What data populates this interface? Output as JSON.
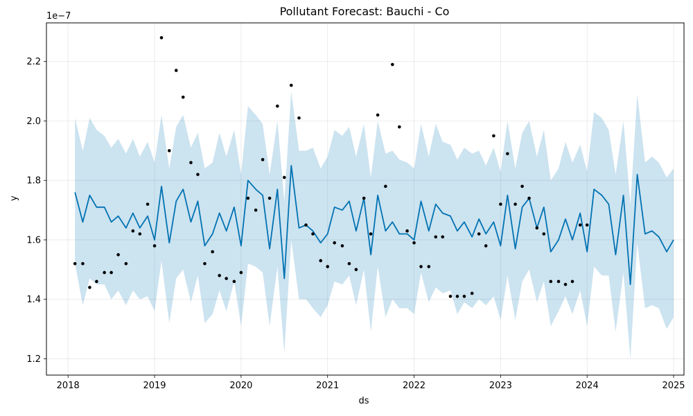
{
  "chart_data": {
    "type": "line",
    "title": "Pollutant Forecast: Bauchi - Co",
    "xlabel": "ds",
    "ylabel": "y",
    "y_offset_label": "1e−7",
    "xlim": [
      2017.75,
      2025.12
    ],
    "ylim": [
      1.145,
      2.33
    ],
    "x_ticks": [
      2018,
      2019,
      2020,
      2021,
      2022,
      2023,
      2024,
      2025
    ],
    "x_tick_labels": [
      "2018",
      "2019",
      "2020",
      "2021",
      "2022",
      "2023",
      "2024",
      "2025"
    ],
    "y_ticks": [
      1.2,
      1.4,
      1.6,
      1.8,
      2.0,
      2.2
    ],
    "y_tick_labels": [
      "1.2",
      "1.4",
      "1.6",
      "1.8",
      "2.0",
      "2.2"
    ],
    "grid": true,
    "colors": {
      "forecast": "#0072B2",
      "interval": "#0072B2",
      "observed": "#000000"
    },
    "series": [
      {
        "kind": "interval",
        "x": [
          2018.08,
          2018.17,
          2018.25,
          2018.33,
          2018.42,
          2018.5,
          2018.58,
          2018.67,
          2018.75,
          2018.83,
          2018.92,
          2019.0,
          2019.08,
          2019.17,
          2019.25,
          2019.33,
          2019.42,
          2019.5,
          2019.58,
          2019.67,
          2019.75,
          2019.83,
          2019.92,
          2020.0,
          2020.08,
          2020.17,
          2020.25,
          2020.33,
          2020.42,
          2020.5,
          2020.58,
          2020.67,
          2020.75,
          2020.83,
          2020.92,
          2021.0,
          2021.08,
          2021.17,
          2021.25,
          2021.33,
          2021.42,
          2021.5,
          2021.58,
          2021.67,
          2021.75,
          2021.83,
          2021.92,
          2022.0,
          2022.08,
          2022.17,
          2022.25,
          2022.33,
          2022.42,
          2022.5,
          2022.58,
          2022.67,
          2022.75,
          2022.83,
          2022.92,
          2023.0,
          2023.08,
          2023.17,
          2023.25,
          2023.33,
          2023.42,
          2023.5,
          2023.58,
          2023.67,
          2023.75,
          2023.83,
          2023.92,
          2024.0,
          2024.08,
          2024.17,
          2024.25,
          2024.33,
          2024.42,
          2024.5,
          2024.58,
          2024.67,
          2024.75,
          2024.83,
          2024.92,
          2025.0
        ],
        "lower": [
          1.52,
          1.38,
          1.47,
          1.45,
          1.45,
          1.4,
          1.43,
          1.38,
          1.43,
          1.4,
          1.41,
          1.36,
          1.53,
          1.32,
          1.47,
          1.5,
          1.39,
          1.48,
          1.32,
          1.35,
          1.43,
          1.36,
          1.46,
          1.31,
          1.52,
          1.51,
          1.49,
          1.31,
          1.51,
          1.22,
          1.6,
          1.4,
          1.4,
          1.37,
          1.34,
          1.38,
          1.46,
          1.45,
          1.48,
          1.38,
          1.5,
          1.29,
          1.51,
          1.34,
          1.4,
          1.37,
          1.37,
          1.35,
          1.49,
          1.39,
          1.44,
          1.42,
          1.43,
          1.35,
          1.39,
          1.37,
          1.4,
          1.38,
          1.41,
          1.33,
          1.48,
          1.33,
          1.46,
          1.5,
          1.39,
          1.46,
          1.31,
          1.36,
          1.41,
          1.35,
          1.43,
          1.31,
          1.51,
          1.48,
          1.48,
          1.29,
          1.49,
          1.2,
          1.59,
          1.37,
          1.38,
          1.37,
          1.3,
          1.34
        ],
        "upper": [
          2.01,
          1.9,
          2.01,
          1.97,
          1.95,
          1.91,
          1.94,
          1.89,
          1.94,
          1.88,
          1.93,
          1.86,
          2.02,
          1.84,
          1.98,
          2.02,
          1.91,
          1.96,
          1.84,
          1.86,
          1.96,
          1.88,
          1.97,
          1.82,
          2.05,
          2.02,
          1.99,
          1.82,
          2.0,
          1.73,
          2.1,
          1.9,
          1.9,
          1.91,
          1.84,
          1.88,
          1.97,
          1.95,
          1.98,
          1.88,
          1.99,
          1.81,
          2.0,
          1.89,
          1.9,
          1.87,
          1.86,
          1.84,
          1.99,
          1.88,
          1.99,
          1.93,
          1.92,
          1.87,
          1.91,
          1.89,
          1.9,
          1.85,
          1.91,
          1.83,
          2.0,
          1.84,
          1.96,
          2.0,
          1.88,
          1.97,
          1.8,
          1.84,
          1.93,
          1.86,
          1.92,
          1.83,
          2.03,
          2.01,
          1.97,
          1.82,
          2.0,
          1.72,
          2.09,
          1.86,
          1.88,
          1.86,
          1.81,
          1.84
        ]
      },
      {
        "kind": "line",
        "x": [
          2018.08,
          2018.17,
          2018.25,
          2018.33,
          2018.42,
          2018.5,
          2018.58,
          2018.67,
          2018.75,
          2018.83,
          2018.92,
          2019.0,
          2019.08,
          2019.17,
          2019.25,
          2019.33,
          2019.42,
          2019.5,
          2019.58,
          2019.67,
          2019.75,
          2019.83,
          2019.92,
          2020.0,
          2020.08,
          2020.17,
          2020.25,
          2020.33,
          2020.42,
          2020.5,
          2020.58,
          2020.67,
          2020.75,
          2020.83,
          2020.92,
          2021.0,
          2021.08,
          2021.17,
          2021.25,
          2021.33,
          2021.42,
          2021.5,
          2021.58,
          2021.67,
          2021.75,
          2021.83,
          2021.92,
          2022.0,
          2022.08,
          2022.17,
          2022.25,
          2022.33,
          2022.42,
          2022.5,
          2022.58,
          2022.67,
          2022.75,
          2022.83,
          2022.92,
          2023.0,
          2023.08,
          2023.17,
          2023.25,
          2023.33,
          2023.42,
          2023.5,
          2023.58,
          2023.67,
          2023.75,
          2023.83,
          2023.92,
          2024.0,
          2024.08,
          2024.17,
          2024.25,
          2024.33,
          2024.42,
          2024.5,
          2024.58,
          2024.67,
          2024.75,
          2024.83,
          2024.92,
          2025.0
        ],
        "values": [
          1.76,
          1.66,
          1.75,
          1.71,
          1.71,
          1.66,
          1.68,
          1.64,
          1.69,
          1.64,
          1.68,
          1.6,
          1.78,
          1.59,
          1.73,
          1.77,
          1.66,
          1.73,
          1.58,
          1.62,
          1.69,
          1.63,
          1.71,
          1.58,
          1.8,
          1.77,
          1.75,
          1.57,
          1.77,
          1.47,
          1.85,
          1.64,
          1.65,
          1.63,
          1.59,
          1.62,
          1.71,
          1.7,
          1.73,
          1.63,
          1.74,
          1.55,
          1.75,
          1.63,
          1.66,
          1.62,
          1.62,
          1.6,
          1.73,
          1.63,
          1.72,
          1.69,
          1.68,
          1.63,
          1.66,
          1.61,
          1.67,
          1.62,
          1.66,
          1.58,
          1.75,
          1.57,
          1.71,
          1.74,
          1.64,
          1.71,
          1.56,
          1.6,
          1.67,
          1.6,
          1.69,
          1.56,
          1.77,
          1.75,
          1.72,
          1.55,
          1.75,
          1.45,
          1.82,
          1.62,
          1.63,
          1.61,
          1.56,
          1.6
        ]
      },
      {
        "kind": "points",
        "x": [
          2018.08,
          2018.17,
          2018.25,
          2018.33,
          2018.42,
          2018.5,
          2018.58,
          2018.67,
          2018.75,
          2018.83,
          2018.92,
          2019.0,
          2019.08,
          2019.17,
          2019.25,
          2019.33,
          2019.42,
          2019.5,
          2019.58,
          2019.67,
          2019.75,
          2019.83,
          2019.92,
          2020.0,
          2020.08,
          2020.17,
          2020.25,
          2020.33,
          2020.42,
          2020.5,
          2020.58,
          2020.67,
          2020.75,
          2020.83,
          2020.92,
          2021.0,
          2021.08,
          2021.17,
          2021.25,
          2021.33,
          2021.42,
          2021.5,
          2021.58,
          2021.67,
          2021.75,
          2021.83,
          2021.92,
          2022.0,
          2022.08,
          2022.17,
          2022.25,
          2022.33,
          2022.42,
          2022.5,
          2022.58,
          2022.67,
          2022.75,
          2022.83,
          2022.92,
          2023.0,
          2023.08,
          2023.17,
          2023.25,
          2023.33,
          2023.42,
          2023.5,
          2023.58,
          2023.67,
          2023.75,
          2023.83,
          2023.92,
          2024.0
        ],
        "values": [
          1.52,
          1.52,
          1.44,
          1.46,
          1.49,
          1.49,
          1.55,
          1.52,
          1.63,
          1.62,
          1.72,
          1.58,
          2.28,
          1.9,
          2.17,
          2.08,
          1.86,
          1.82,
          1.52,
          1.56,
          1.48,
          1.47,
          1.46,
          1.49,
          1.74,
          1.7,
          1.87,
          1.74,
          2.05,
          1.81,
          2.12,
          2.01,
          1.65,
          1.62,
          1.53,
          1.51,
          1.59,
          1.58,
          1.52,
          1.5,
          1.74,
          1.62,
          2.02,
          1.78,
          2.19,
          1.98,
          1.63,
          1.59,
          1.51,
          1.51,
          1.61,
          1.61,
          1.41,
          1.41,
          1.41,
          1.42,
          1.62,
          1.58,
          1.95,
          1.72,
          1.89,
          1.72,
          1.78,
          1.74,
          1.64,
          1.62,
          1.46,
          1.46,
          1.45,
          1.46,
          1.65,
          1.65
        ]
      }
    ]
  }
}
